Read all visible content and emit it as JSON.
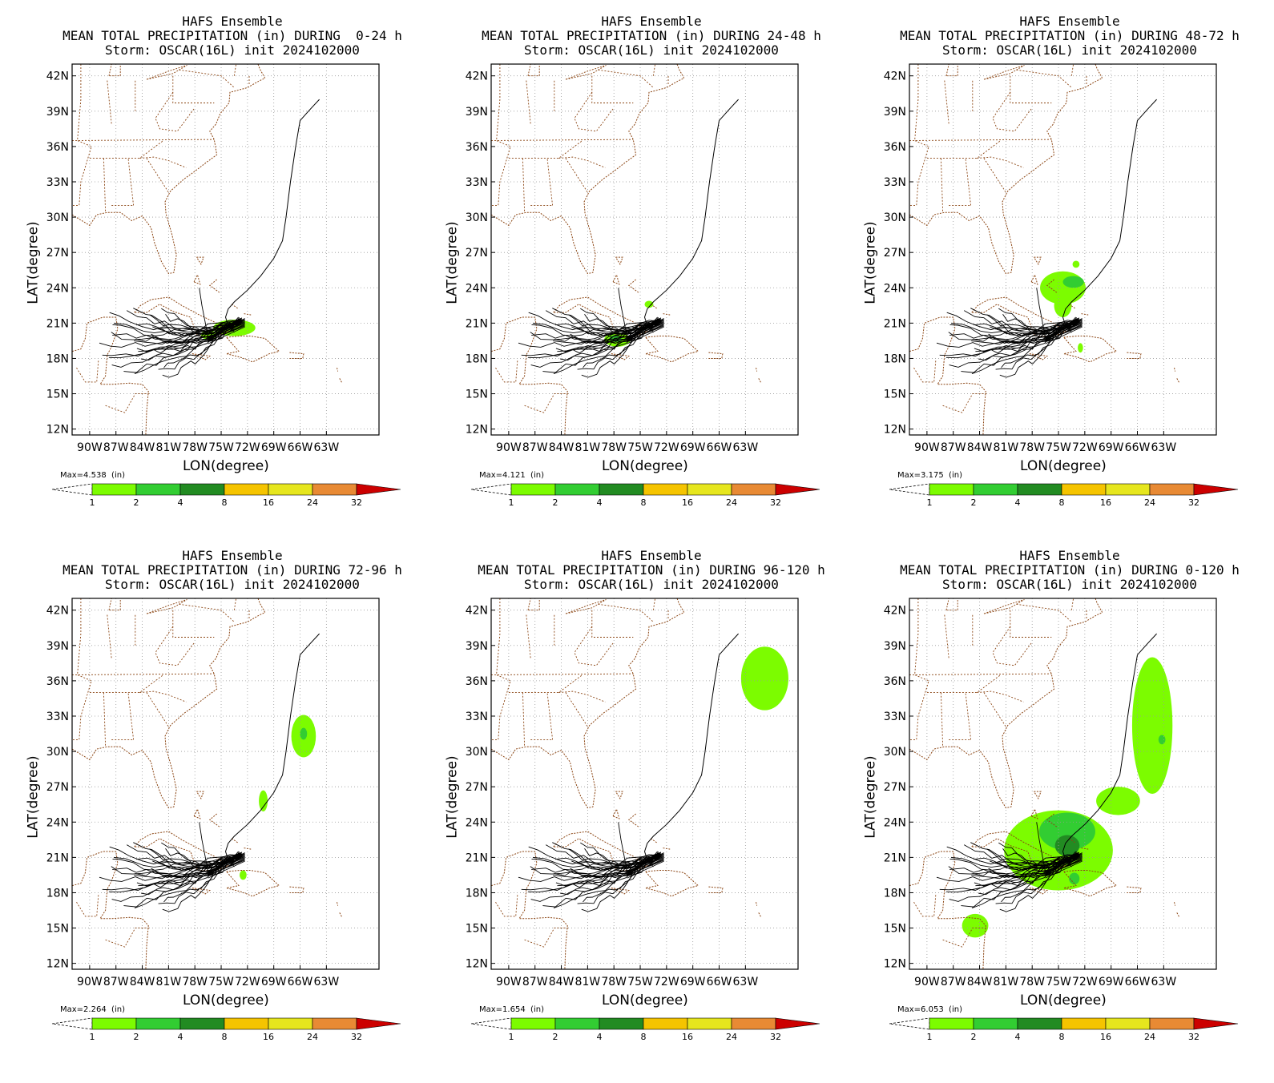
{
  "figure": {
    "map_extent": {
      "lon": [
        -92,
        -57
      ],
      "lat": [
        11.5,
        43
      ]
    },
    "lon_ticks": [
      "90W",
      "87W",
      "84W",
      "81W",
      "78W",
      "75W",
      "72W",
      "69W",
      "66W",
      "63W"
    ],
    "lon_tick_values": [
      -90,
      -87,
      -84,
      -81,
      -78,
      -75,
      -72,
      -69,
      -66,
      -63
    ],
    "lat_ticks": [
      "42N",
      "39N",
      "36N",
      "33N",
      "30N",
      "27N",
      "24N",
      "21N",
      "18N",
      "15N",
      "12N"
    ],
    "lat_tick_values": [
      42,
      39,
      36,
      33,
      30,
      27,
      24,
      21,
      18,
      15,
      12
    ],
    "xlabel": "LON(degree)",
    "ylabel": "LAT(degree)",
    "colorbar": {
      "ticks": [
        "1",
        "2",
        "4",
        "8",
        "16",
        "24",
        "32"
      ],
      "colors": [
        "#7cfc00",
        "#32cd32",
        "#228b22",
        "#f5c400",
        "#e6e61e",
        "#e88a34",
        "#cc0000"
      ],
      "unit": "(in)"
    },
    "grid": "dotted",
    "track_color": "#000000",
    "coastline_color": "#8b4513"
  },
  "panels": [
    {
      "line1": "HAFS Ensemble",
      "line2": "MEAN TOTAL PRECIPITATION (in) DURING  0-24 h",
      "line3": "Storm: OSCAR(16L) init 2024102000",
      "max": "Max=4.538"
    },
    {
      "line1": "HAFS Ensemble",
      "line2": "MEAN TOTAL PRECIPITATION (in) DURING 24-48 h",
      "line3": "Storm: OSCAR(16L) init 2024102000",
      "max": "Max=4.121"
    },
    {
      "line1": "HAFS Ensemble",
      "line2": "MEAN TOTAL PRECIPITATION (in) DURING 48-72 h",
      "line3": "Storm: OSCAR(16L) init 2024102000",
      "max": "Max=3.175"
    },
    {
      "line1": "HAFS Ensemble",
      "line2": "MEAN TOTAL PRECIPITATION (in) DURING 72-96 h",
      "line3": "Storm: OSCAR(16L) init 2024102000",
      "max": "Max=2.264"
    },
    {
      "line1": "HAFS Ensemble",
      "line2": "MEAN TOTAL PRECIPITATION (in) DURING 96-120 h",
      "line3": "Storm: OSCAR(16L) init 2024102000",
      "max": "Max=1.654"
    },
    {
      "line1": "HAFS Ensemble",
      "line2": "MEAN TOTAL PRECIPITATION (in) DURING 0-120 h",
      "line3": "Storm: OSCAR(16L) init 2024102000",
      "max": "Max=6.053"
    }
  ]
}
